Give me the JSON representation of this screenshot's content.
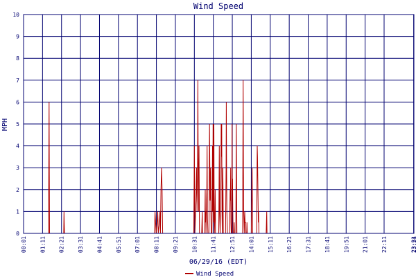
{
  "chart_data": {
    "type": "line",
    "title": "Wind Speed",
    "xlabel": "06/29/16 (EDT)",
    "ylabel": "MPH",
    "ylim": [
      0,
      10
    ],
    "yticks": [
      "0",
      "1",
      "2",
      "3",
      "4",
      "5",
      "6",
      "7",
      "8",
      "9",
      "10"
    ],
    "grid": true,
    "legend_position": "bottom-center",
    "colors": {
      "series": "#b00000",
      "grid": "#000070",
      "axis": "#000070",
      "title": "#000070",
      "text": "#000070",
      "background": "#ffffff"
    },
    "x_range_minutes": [
      0,
      1440
    ],
    "xticks": [
      {
        "minute": 0,
        "label": "00:01"
      },
      {
        "minute": 70,
        "label": "01:11"
      },
      {
        "minute": 140,
        "label": "02:21"
      },
      {
        "minute": 210,
        "label": "03:31"
      },
      {
        "minute": 280,
        "label": "04:41"
      },
      {
        "minute": 350,
        "label": "05:51"
      },
      {
        "minute": 420,
        "label": "07:01"
      },
      {
        "minute": 490,
        "label": "08:11"
      },
      {
        "minute": 560,
        "label": "09:21"
      },
      {
        "minute": 630,
        "label": "10:31"
      },
      {
        "minute": 700,
        "label": "11:41"
      },
      {
        "minute": 770,
        "label": "12:51"
      },
      {
        "minute": 840,
        "label": "14:01"
      },
      {
        "minute": 910,
        "label": "15:11"
      },
      {
        "minute": 980,
        "label": "16:21"
      },
      {
        "minute": 1050,
        "label": "17:31"
      },
      {
        "minute": 1120,
        "label": "18:41"
      },
      {
        "minute": 1190,
        "label": "19:51"
      },
      {
        "minute": 1260,
        "label": "21:01"
      },
      {
        "minute": 1330,
        "label": "22:11"
      },
      {
        "minute": 1439,
        "label": "23:21"
      },
      {
        "minute": 1440,
        "label": "23:54"
      }
    ],
    "series": [
      {
        "name": "Wind Speed",
        "points": [
          [
            0,
            0
          ],
          [
            92,
            0
          ],
          [
            93,
            3
          ],
          [
            94,
            6
          ],
          [
            95,
            3
          ],
          [
            96,
            0
          ],
          [
            148,
            0
          ],
          [
            149,
            1
          ],
          [
            150,
            0.5
          ],
          [
            151,
            0
          ],
          [
            483,
            0
          ],
          [
            485,
            1
          ],
          [
            487,
            0.5
          ],
          [
            489,
            0
          ],
          [
            493,
            0.5
          ],
          [
            495,
            1
          ],
          [
            497,
            0
          ],
          [
            501,
            0.5
          ],
          [
            503,
            1
          ],
          [
            505,
            0
          ],
          [
            507,
            2
          ],
          [
            509,
            3
          ],
          [
            511,
            2
          ],
          [
            513,
            0
          ],
          [
            628,
            0
          ],
          [
            629,
            2
          ],
          [
            630,
            4
          ],
          [
            631,
            2
          ],
          [
            632,
            0
          ],
          [
            636,
            1.5
          ],
          [
            638,
            3
          ],
          [
            640,
            1
          ],
          [
            642,
            3.5
          ],
          [
            643,
            7
          ],
          [
            644,
            3.5
          ],
          [
            646,
            1
          ],
          [
            647,
            4
          ],
          [
            648,
            2
          ],
          [
            649,
            0
          ],
          [
            657,
            0
          ],
          [
            658,
            0.5
          ],
          [
            659,
            1
          ],
          [
            660,
            0
          ],
          [
            668,
            0
          ],
          [
            670,
            2
          ],
          [
            671,
            0.5
          ],
          [
            672,
            1
          ],
          [
            673,
            0
          ],
          [
            676,
            2
          ],
          [
            677,
            4
          ],
          [
            678,
            1
          ],
          [
            679,
            0.5
          ],
          [
            680,
            0
          ],
          [
            684,
            0
          ],
          [
            686,
            5
          ],
          [
            688,
            1.5
          ],
          [
            690,
            3
          ],
          [
            691,
            1
          ],
          [
            692,
            0
          ],
          [
            695,
            0
          ],
          [
            697,
            4
          ],
          [
            698,
            1
          ],
          [
            699,
            5
          ],
          [
            700,
            0.5
          ],
          [
            701,
            2.5
          ],
          [
            702,
            5
          ],
          [
            703,
            1
          ],
          [
            704,
            0
          ],
          [
            706,
            1
          ],
          [
            707,
            2
          ],
          [
            708,
            0
          ],
          [
            720,
            0
          ],
          [
            722,
            4
          ],
          [
            723,
            1
          ],
          [
            724,
            0.5
          ],
          [
            725,
            0
          ],
          [
            728,
            2.5
          ],
          [
            729,
            5
          ],
          [
            730,
            3.5
          ],
          [
            731,
            5
          ],
          [
            732,
            1
          ],
          [
            733,
            0
          ],
          [
            735,
            3
          ],
          [
            736,
            1.5
          ],
          [
            737,
            0
          ],
          [
            745,
            0
          ],
          [
            747,
            3
          ],
          [
            748,
            6
          ],
          [
            749,
            3
          ],
          [
            750,
            1
          ],
          [
            751,
            0.5
          ],
          [
            752,
            0
          ],
          [
            760,
            0
          ],
          [
            761,
            1
          ],
          [
            762,
            2
          ],
          [
            763,
            1.5
          ],
          [
            764,
            3
          ],
          [
            765,
            0.5
          ],
          [
            766,
            0
          ],
          [
            768,
            0
          ],
          [
            769,
            5
          ],
          [
            770,
            2
          ],
          [
            771,
            2.5
          ],
          [
            772,
            1
          ],
          [
            773,
            0
          ],
          [
            776,
            0
          ],
          [
            777,
            0.5
          ],
          [
            778,
            0
          ],
          [
            783,
            0
          ],
          [
            784,
            2.5
          ],
          [
            785,
            5
          ],
          [
            786,
            1.5
          ],
          [
            787,
            0
          ],
          [
            808,
            0
          ],
          [
            809,
            3.5
          ],
          [
            810,
            7
          ],
          [
            811,
            3
          ],
          [
            812,
            1
          ],
          [
            813,
            0.5
          ],
          [
            814,
            0
          ],
          [
            816,
            1
          ],
          [
            817,
            0.5
          ],
          [
            818,
            0.5
          ],
          [
            819,
            0.5
          ],
          [
            820,
            0
          ],
          [
            823,
            0
          ],
          [
            824,
            0.5
          ],
          [
            825,
            0
          ],
          [
            840,
            0
          ],
          [
            841,
            1
          ],
          [
            842,
            2
          ],
          [
            843,
            3
          ],
          [
            844,
            1.5
          ],
          [
            845,
            0
          ],
          [
            860,
            0
          ],
          [
            861,
            2
          ],
          [
            862,
            4
          ],
          [
            863,
            3.5
          ],
          [
            864,
            2.5
          ],
          [
            865,
            1.5
          ],
          [
            866,
            0.5
          ],
          [
            867,
            1
          ],
          [
            868,
            0
          ],
          [
            895,
            0
          ],
          [
            896,
            0.5
          ],
          [
            897,
            1
          ],
          [
            898,
            0
          ]
        ]
      }
    ]
  }
}
